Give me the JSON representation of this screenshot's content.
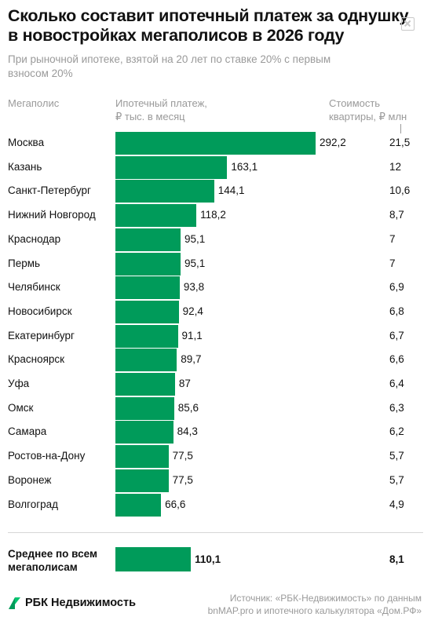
{
  "title_lines": [
    "Сколько составит ипотечный платеж за однушку",
    "в новостройках мегаполисов в 2026 году"
  ],
  "subtitle_lines": [
    "При рыночной ипотеке, взятой на 20 лет по ставке 20% с первым",
    "взносом 20%"
  ],
  "columns": {
    "city": "Мегаполис",
    "payment_lines": [
      "Ипотечный платеж,",
      "₽ тыс. в месяц"
    ],
    "price_lines": [
      "Стоимость",
      "квартиры, ₽ млн"
    ]
  },
  "chart_data": {
    "type": "bar",
    "orientation": "horizontal",
    "categories": [
      "Москва",
      "Казань",
      "Санкт-Петербург",
      "Нижний Новгород",
      "Краснодар",
      "Пермь",
      "Челябинск",
      "Новосибирск",
      "Екатеринбург",
      "Красноярск",
      "Уфа",
      "Омск",
      "Самара",
      "Ростов-на-Дону",
      "Воронеж",
      "Волгоград"
    ],
    "values": [
      292.2,
      163.1,
      144.1,
      118.2,
      95.1,
      95.1,
      93.8,
      92.4,
      91.1,
      89.7,
      87,
      85.6,
      84.3,
      77.5,
      77.5,
      66.6
    ],
    "value_labels": [
      "292,2",
      "163,1",
      "144,1",
      "118,2",
      "95,1",
      "95,1",
      "93,8",
      "92,4",
      "91,1",
      "89,7",
      "87",
      "85,6",
      "84,3",
      "77,5",
      "77,5",
      "66,6"
    ],
    "prices": [
      21.5,
      12,
      10.6,
      8.7,
      7,
      7,
      6.9,
      6.8,
      6.7,
      6.6,
      6.4,
      6.3,
      6.2,
      5.7,
      5.7,
      4.9
    ],
    "price_labels": [
      "21,5",
      "12",
      "10,6",
      "8,7",
      "7",
      "7",
      "6,9",
      "6,8",
      "6,7",
      "6,6",
      "6,4",
      "6,3",
      "6,2",
      "5,7",
      "5,7",
      "4,9"
    ],
    "average": {
      "label_lines": [
        "Среднее по всем",
        "мегаполисам"
      ],
      "value": 110.1,
      "value_label": "110,1",
      "price": 8.1,
      "price_label": "8,1"
    },
    "xlim": [
      0,
      292.2
    ],
    "grid": false,
    "bar_color": "#009b5a"
  },
  "footer": {
    "logo_text": "РБК Недвижимость",
    "logo_icon": "rbc-logo-icon",
    "source_lines": [
      "Источник: «РБК-Недвижимость» по данным",
      "bnMAP.pro и ипотечного калькулятора «Дом.РФ»"
    ]
  },
  "colors": {
    "accent": "#009b5a",
    "muted_text": "#9a9a9a",
    "text": "#111111"
  }
}
